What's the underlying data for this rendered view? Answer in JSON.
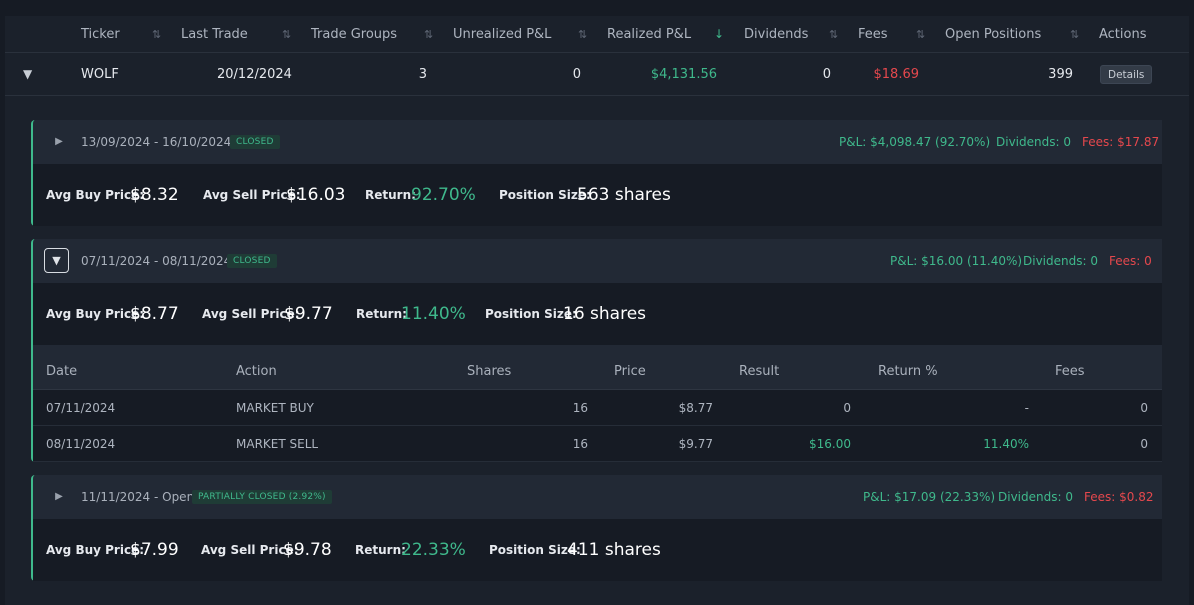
{
  "header": {
    "columns": [
      {
        "label": "Ticker"
      },
      {
        "label": "Last Trade"
      },
      {
        "label": "Trade Groups"
      },
      {
        "label": "Unrealized P&L"
      },
      {
        "label": "Realized P&L"
      },
      {
        "label": "Dividends"
      },
      {
        "label": "Fees"
      },
      {
        "label": "Open Positions"
      },
      {
        "label": "Actions"
      }
    ],
    "sort_icon": "⇅",
    "sort_active_icon": "↓"
  },
  "row": {
    "expand_icon": "▼",
    "ticker": "WOLF",
    "last_trade": "20/12/2024",
    "trade_groups": "3",
    "unrealized": "0",
    "realized": "$4,131.56",
    "dividends": "0",
    "fees": "$18.69",
    "open_positions": "399",
    "details_label": "Details"
  },
  "groups": [
    {
      "toggle_icon": "▶",
      "date_range": "13/09/2024 - 16/10/2024",
      "status": "CLOSED",
      "pnl": "P&L: $4,098.47 (92.70%)",
      "dividends": "Dividends: 0",
      "fees": "Fees: $17.87",
      "avg_buy_label": "Avg Buy Price:",
      "avg_buy": "$8.32",
      "avg_sell_label": "Avg Sell Price:",
      "avg_sell": "$16.03",
      "return_label": "Return:",
      "return": "92.70%",
      "position_label": "Position Size:",
      "position": "563 shares"
    },
    {
      "toggle_icon": "▼",
      "date_range": "07/11/2024 - 08/11/2024",
      "status": "CLOSED",
      "pnl": "P&L: $16.00 (11.40%)",
      "dividends": "Dividends: 0",
      "fees": "Fees: 0",
      "avg_buy_label": "Avg Buy Price:",
      "avg_buy": "$8.77",
      "avg_sell_label": "Avg Sell Price:",
      "avg_sell": "$9.77",
      "return_label": "Return:",
      "return": "11.40%",
      "position_label": "Position Size:",
      "position": "16 shares",
      "trades": {
        "columns": [
          "Date",
          "Action",
          "Shares",
          "Price",
          "Result",
          "Return %",
          "Fees"
        ],
        "rows": [
          {
            "date": "07/11/2024",
            "action": "MARKET BUY",
            "shares": "16",
            "price": "$8.77",
            "result": "0",
            "return": "-",
            "fees": "0"
          },
          {
            "date": "08/11/2024",
            "action": "MARKET SELL",
            "shares": "16",
            "price": "$9.77",
            "result": "$16.00",
            "return": "11.40%",
            "fees": "0"
          }
        ]
      }
    },
    {
      "toggle_icon": "▶",
      "date_range": "11/11/2024 - Open",
      "status": "PARTIALLY CLOSED (2.92%)",
      "pnl": "P&L: $17.09 (22.33%)",
      "dividends": "Dividends: 0",
      "fees": "Fees: $0.82",
      "avg_buy_label": "Avg Buy Price:",
      "avg_buy": "$7.99",
      "avg_sell_label": "Avg Sell Price:",
      "avg_sell": "$9.78",
      "return_label": "Return:",
      "return": "22.33%",
      "position_label": "Position Size:",
      "position": "411 shares"
    }
  ]
}
